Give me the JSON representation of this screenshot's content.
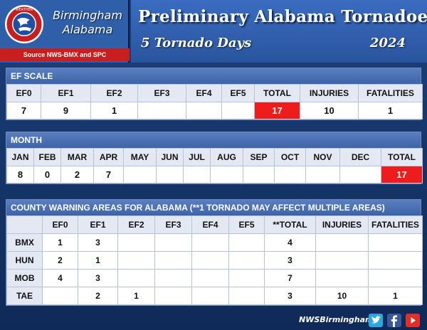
{
  "header": {
    "office_line1": "Birmingham",
    "office_line2": "Alabama",
    "source": "Source NWS-BMX and SPC",
    "title": "Preliminary Alabama Tornadoes",
    "subtitle": "5 Tornado Days",
    "year": "2024"
  },
  "ef_scale": {
    "heading": "EF SCALE",
    "columns": [
      "EF0",
      "EF1",
      "EF2",
      "EF3",
      "EF4",
      "EF5",
      "TOTAL",
      "INJURIES",
      "FATALITIES"
    ],
    "values": [
      "7",
      "9",
      "1",
      "",
      "",
      "",
      "17",
      "10",
      "1"
    ]
  },
  "month": {
    "heading": "MONTH",
    "columns": [
      "JAN",
      "FEB",
      "MAR",
      "APR",
      "MAY",
      "JUN",
      "JUL",
      "AUG",
      "SEP",
      "OCT",
      "NOV",
      "DEC",
      "TOTAL"
    ],
    "values": [
      "8",
      "0",
      "2",
      "7",
      "",
      "",
      "",
      "",
      "",
      "",
      "",
      "",
      "17"
    ]
  },
  "cwa": {
    "heading": "COUNTY WARNING AREAS FOR ALABAMA (**1 TORNADO MAY AFFECT MULTIPLE AREAS)",
    "columns": [
      "",
      "EF0",
      "EF1",
      "EF2",
      "EF3",
      "EF4",
      "EF5",
      "**TOTAL",
      "INJURIES",
      "FATALITIES"
    ],
    "rows": [
      [
        "BMX",
        "1",
        "3",
        "",
        "",
        "",
        "",
        "4",
        "",
        ""
      ],
      [
        "HUN",
        "2",
        "1",
        "",
        "",
        "",
        "",
        "3",
        "",
        ""
      ],
      [
        "MOB",
        "4",
        "3",
        "",
        "",
        "",
        "",
        "7",
        "",
        ""
      ],
      [
        "TAE",
        "",
        "2",
        "1",
        "",
        "",
        "",
        "3",
        "10",
        "1"
      ]
    ]
  },
  "footer": {
    "handle": "NWSBirmingham",
    "icons": [
      "twitter-icon",
      "facebook-icon",
      "youtube-icon"
    ]
  },
  "colors": {
    "accent_red": "#ee1c1c",
    "panel_blue": "#3d63a8",
    "background": "#16366b"
  }
}
